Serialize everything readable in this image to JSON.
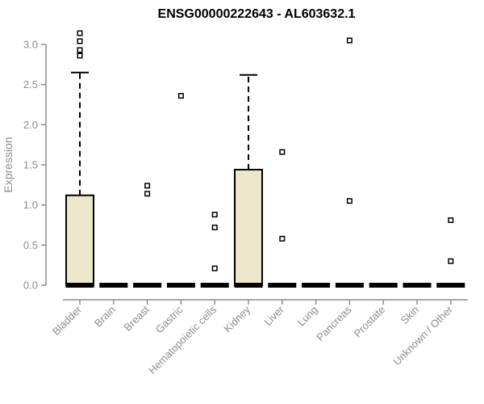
{
  "title": "ENSG00000222643 - AL603632.1",
  "colors": {
    "background": "#ffffff",
    "box_fill": "#ece6ca",
    "box_stroke": "#000000",
    "median_line": "#000000",
    "whisker": "#000000",
    "outlier_stroke": "#000000",
    "axis": "#8c8c8c",
    "axis_text": "#8c8c8c",
    "title_text": "#000000"
  },
  "chart_data": {
    "type": "boxplot",
    "title": "ENSG00000222643 - AL603632.1",
    "xlabel": "",
    "ylabel": "Expression",
    "ylim": [
      0.0,
      3.0
    ],
    "yticks": [
      0.0,
      0.5,
      1.0,
      1.5,
      2.0,
      2.5,
      3.0
    ],
    "grid": false,
    "legend": "none",
    "categories": [
      "Bladder",
      "Brain",
      "Breast",
      "Gastric",
      "Hematopoietic cells",
      "Kidney",
      "Liver",
      "Lung",
      "Pancreas",
      "Prostate",
      "Skin",
      "Unknown / Other"
    ],
    "series": [
      {
        "category": "Bladder",
        "whisker_low": 0,
        "q1": 0,
        "median": 0,
        "q3": 1.12,
        "whisker_high": 2.65,
        "outliers": [
          2.86,
          2.93,
          3.04,
          3.14
        ]
      },
      {
        "category": "Brain",
        "whisker_low": 0,
        "q1": 0,
        "median": 0,
        "q3": 0,
        "whisker_high": 0,
        "outliers": []
      },
      {
        "category": "Breast",
        "whisker_low": 0,
        "q1": 0,
        "median": 0,
        "q3": 0,
        "whisker_high": 0,
        "outliers": [
          1.14,
          1.24
        ]
      },
      {
        "category": "Gastric",
        "whisker_low": 0,
        "q1": 0,
        "median": 0,
        "q3": 0,
        "whisker_high": 0,
        "outliers": [
          2.36
        ]
      },
      {
        "category": "Hematopoietic cells",
        "whisker_low": 0,
        "q1": 0,
        "median": 0,
        "q3": 0,
        "whisker_high": 0,
        "outliers": [
          0.21,
          0.72,
          0.88
        ]
      },
      {
        "category": "Kidney",
        "whisker_low": 0,
        "q1": 0,
        "median": 0,
        "q3": 1.44,
        "whisker_high": 2.62,
        "outliers": []
      },
      {
        "category": "Liver",
        "whisker_low": 0,
        "q1": 0,
        "median": 0,
        "q3": 0,
        "whisker_high": 0,
        "outliers": [
          0.58,
          1.66
        ]
      },
      {
        "category": "Lung",
        "whisker_low": 0,
        "q1": 0,
        "median": 0,
        "q3": 0,
        "whisker_high": 0,
        "outliers": []
      },
      {
        "category": "Pancreas",
        "whisker_low": 0,
        "q1": 0,
        "median": 0,
        "q3": 0,
        "whisker_high": 0,
        "outliers": [
          1.05,
          3.05
        ]
      },
      {
        "category": "Prostate",
        "whisker_low": 0,
        "q1": 0,
        "median": 0,
        "q3": 0,
        "whisker_high": 0,
        "outliers": []
      },
      {
        "category": "Skin",
        "whisker_low": 0,
        "q1": 0,
        "median": 0,
        "q3": 0,
        "whisker_high": 0,
        "outliers": []
      },
      {
        "category": "Unknown / Other",
        "whisker_low": 0,
        "q1": 0,
        "median": 0,
        "q3": 0,
        "whisker_high": 0,
        "outliers": [
          0.3,
          0.81
        ]
      }
    ]
  }
}
